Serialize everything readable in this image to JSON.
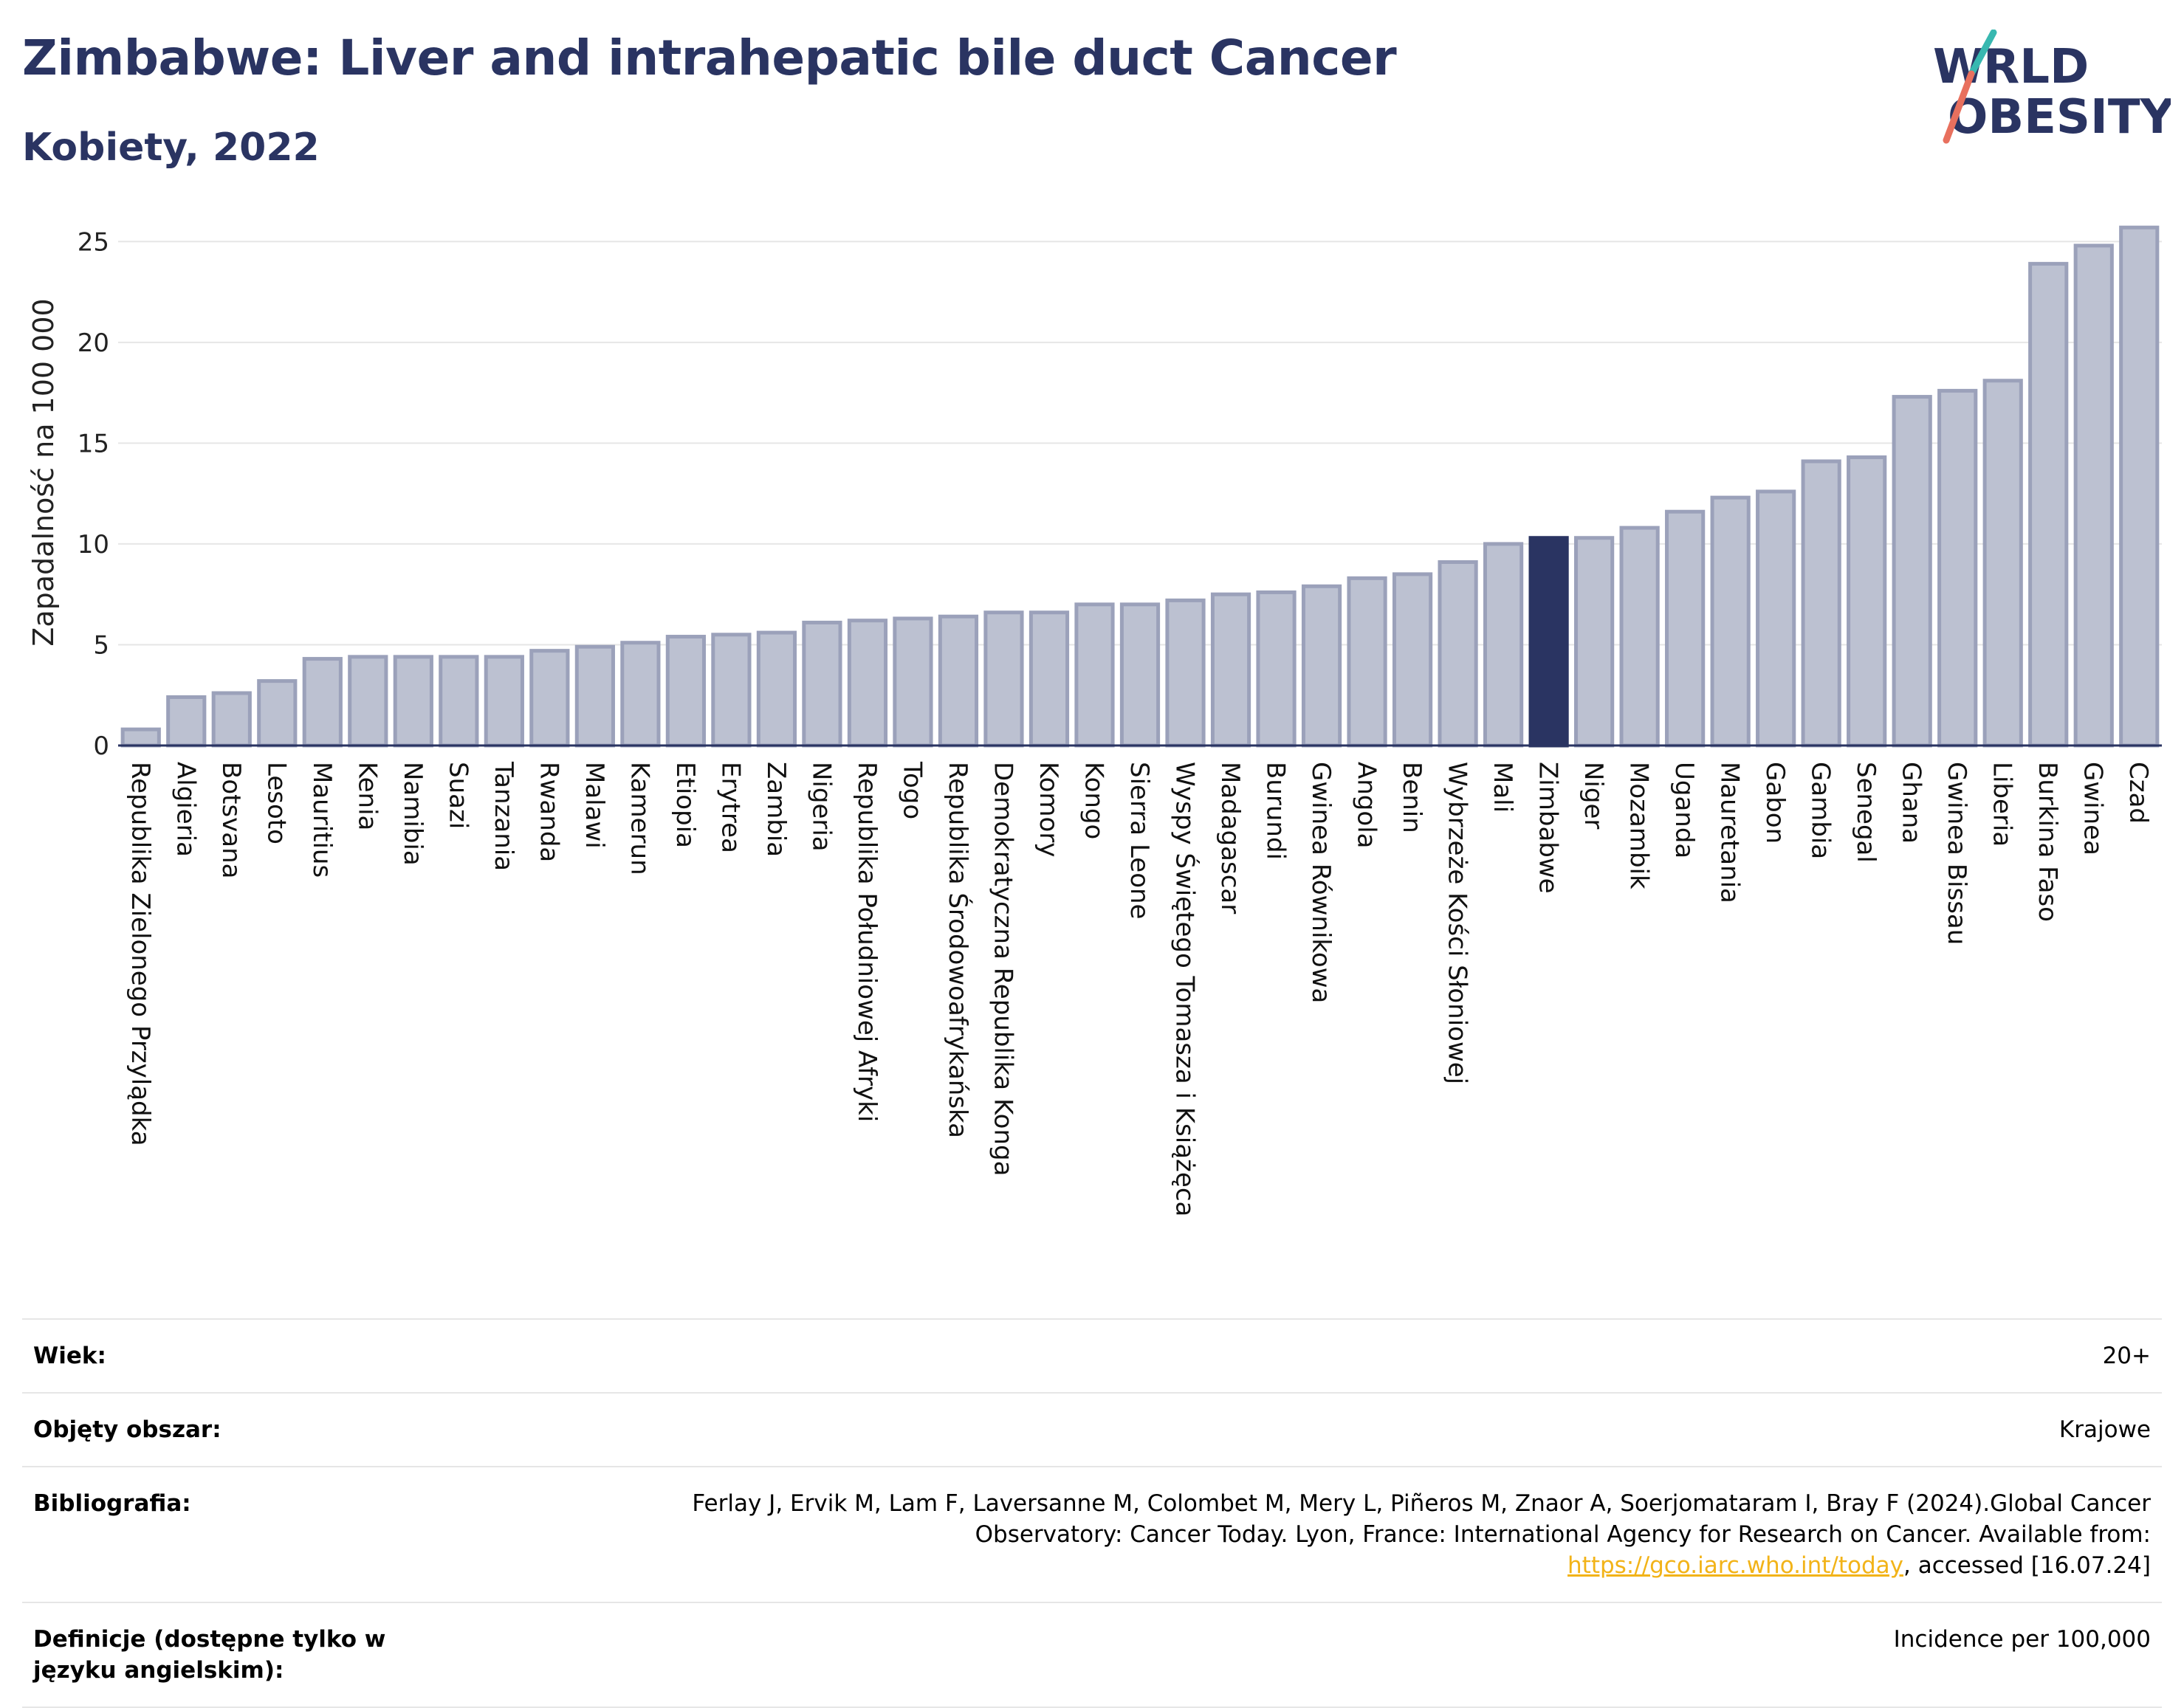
{
  "header": {
    "title": "Zimbabwe: Liver and intrahepatic bile duct Cancer",
    "subtitle": "Kobiety, 2022"
  },
  "logo": {
    "line1": "WORLD",
    "line2": "OBESITY"
  },
  "colors": {
    "bar": "#bcc1d1",
    "bar_border": "#9ba1ba",
    "highlight": "#2a3462",
    "title": "#2a3462",
    "grid": "#e6e6e6"
  },
  "chart_data": {
    "type": "bar",
    "ylabel": "Zapadalność na 100 000",
    "ylim": [
      0,
      26
    ],
    "yticks": [
      0,
      5,
      10,
      15,
      20,
      25
    ],
    "grid": true,
    "highlight": "Zimbabwe",
    "categories": [
      "Republika Zielonego Przylądka",
      "Algieria",
      "Botsvana",
      "Lesoto",
      "Mauritius",
      "Kenia",
      "Namibia",
      "Suazi",
      "Tanzania",
      "Rwanda",
      "Malawi",
      "Kamerun",
      "Etiopia",
      "Erytrea",
      "Zambia",
      "Nigeria",
      "Republika Południowej Afryki",
      "Togo",
      "Republika Środowoafrykańska",
      "Demokratyczna Republika Konga",
      "Komory",
      "Kongo",
      "Sierra Leone",
      "Wyspy Świętego Tomasza i Książęca",
      "Madagascar",
      "Burundi",
      "Gwinea Równikowa",
      "Angola",
      "Benin",
      "Wybrzeże Kości Słoniowej",
      "Mali",
      "Zimbabwe",
      "Niger",
      "Mozambik",
      "Uganda",
      "Mauretania",
      "Gabon",
      "Gambia",
      "Senegal",
      "Ghana",
      "Gwinea Bissau",
      "Liberia",
      "Burkina Faso",
      "Gwinea",
      "Czad"
    ],
    "values": [
      0.8,
      2.4,
      2.6,
      3.2,
      4.3,
      4.4,
      4.4,
      4.4,
      4.4,
      4.7,
      4.9,
      5.1,
      5.4,
      5.5,
      5.6,
      6.1,
      6.2,
      6.3,
      6.4,
      6.6,
      6.6,
      7.0,
      7.0,
      7.2,
      7.5,
      7.6,
      7.9,
      8.3,
      8.5,
      9.1,
      10.0,
      10.3,
      10.3,
      10.8,
      11.6,
      12.3,
      12.6,
      14.1,
      14.3,
      17.3,
      17.6,
      18.1,
      23.9,
      24.8,
      25.7
    ]
  },
  "info": {
    "rows": [
      {
        "label": "Wiek:",
        "value": "20+"
      },
      {
        "label": "Objęty obszar:",
        "value": "Krajowe"
      },
      {
        "label": "Bibliografia:",
        "value_pre": "Ferlay J, Ervik M, Lam F, Laversanne M, Colombet M, Mery L, Piñeros M, Znaor A, Soerjomataram I, Bray F (2024).Global Cancer Observatory: Cancer Today. Lyon, France: International Agency for Research on Cancer. Available from: ",
        "link": "https://gco.iarc.who.int/today",
        "value_post": ", accessed [16.07.24]"
      },
      {
        "label": "Definicje (dostępne tylko w języku angielskim):",
        "value": "Incidence per 100,000"
      }
    ]
  }
}
